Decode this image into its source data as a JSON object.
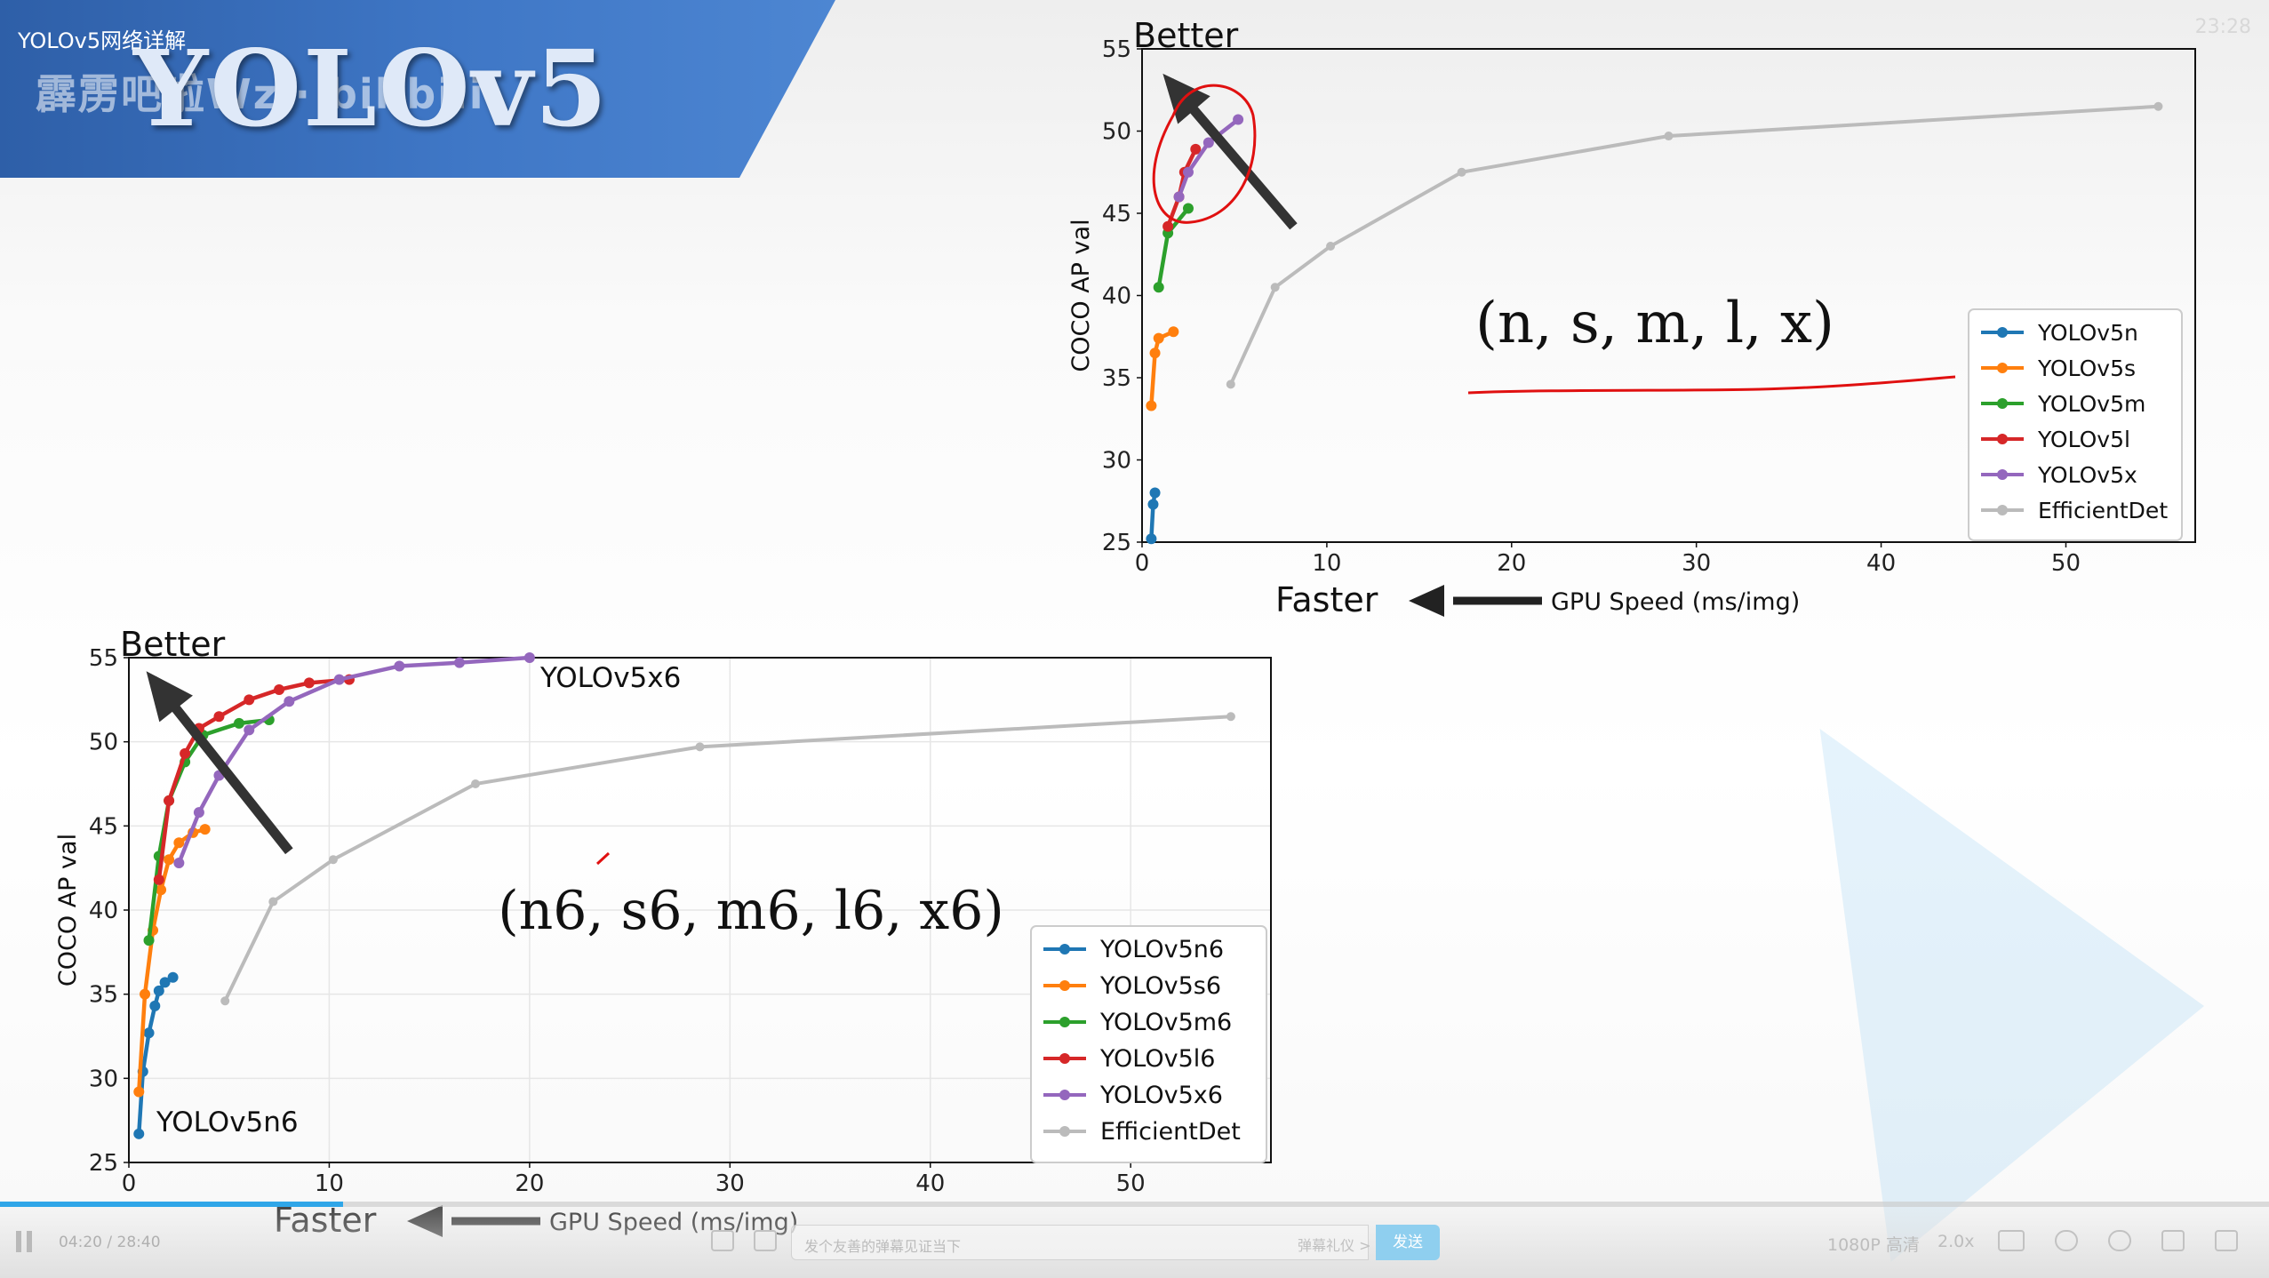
{
  "header": {
    "video_title": "YOLOv5网络详解",
    "watermark": "霹雳吧啦Wz · bilibili",
    "slide_title": "YOLOv5",
    "corner_timer": "23:28"
  },
  "annotations": {
    "top_chart_label": "(n, s, m, l, x)",
    "bottom_chart_label": "(n6, s6, m6, l6, x6)",
    "inline_label_n6": "YOLOv5n6",
    "inline_label_x6": "YOLOv5x6"
  },
  "colors": {
    "yolov5n": "#1f77b4",
    "yolov5s": "#ff7f0e",
    "yolov5m": "#2ca02c",
    "yolov5l": "#d62728",
    "yolov5x": "#9467bd",
    "efficientdet": "#bbbbbb",
    "banner": "#3f77c6",
    "progress": "#2fa6e8",
    "send_button": "#8fcfef",
    "pen_red": "#e01010"
  },
  "chart_data": [
    {
      "type": "line",
      "title": "",
      "xlabel": "GPU Speed (ms/img)",
      "ylabel": "COCO AP val",
      "x_hint": "Faster",
      "y_hint": "Better",
      "xlim": [
        0,
        57
      ],
      "ylim": [
        25,
        55
      ],
      "xticks": [
        0,
        10,
        20,
        30,
        40,
        50
      ],
      "yticks": [
        25,
        30,
        35,
        40,
        45,
        50,
        55
      ],
      "grid": false,
      "legend": "right",
      "series": [
        {
          "name": "YOLOv5n",
          "color_key": "yolov5n",
          "x": [
            0.5,
            0.6,
            0.7
          ],
          "y": [
            25.2,
            27.3,
            28.0
          ]
        },
        {
          "name": "YOLOv5s",
          "color_key": "yolov5s",
          "x": [
            0.5,
            0.7,
            0.9,
            1.7
          ],
          "y": [
            33.3,
            36.5,
            37.4,
            37.8
          ]
        },
        {
          "name": "YOLOv5m",
          "color_key": "yolov5m",
          "x": [
            0.9,
            1.4,
            2.5
          ],
          "y": [
            40.5,
            43.8,
            45.3
          ]
        },
        {
          "name": "YOLOv5l",
          "color_key": "yolov5l",
          "x": [
            1.4,
            2.0,
            2.3,
            2.9
          ],
          "y": [
            44.2,
            46.0,
            47.5,
            48.9
          ]
        },
        {
          "name": "YOLOv5x",
          "color_key": "yolov5x",
          "x": [
            2.0,
            2.5,
            3.6,
            5.2
          ],
          "y": [
            46.0,
            47.5,
            49.3,
            50.7
          ]
        },
        {
          "name": "EfficientDet",
          "color_key": "efficientdet",
          "x": [
            4.8,
            7.2,
            10.2,
            17.3,
            28.5,
            55.0
          ],
          "y": [
            34.6,
            40.5,
            43.0,
            47.5,
            49.7,
            51.5
          ]
        }
      ]
    },
    {
      "type": "line",
      "title": "",
      "xlabel": "GPU Speed (ms/img)",
      "ylabel": "COCO AP val",
      "x_hint": "Faster",
      "y_hint": "Better",
      "xlim": [
        0,
        57
      ],
      "ylim": [
        25,
        55
      ],
      "xticks": [
        0,
        10,
        20,
        30,
        40,
        50
      ],
      "yticks": [
        25,
        30,
        35,
        40,
        45,
        50,
        55
      ],
      "grid": true,
      "legend": "lower right",
      "series": [
        {
          "name": "YOLOv5n6",
          "color_key": "yolov5n",
          "x": [
            0.5,
            0.7,
            1.0,
            1.3,
            1.5,
            1.8,
            2.2
          ],
          "y": [
            26.7,
            30.4,
            32.7,
            34.3,
            35.2,
            35.7,
            36.0
          ]
        },
        {
          "name": "YOLOv5s6",
          "color_key": "yolov5s",
          "x": [
            0.5,
            0.8,
            1.2,
            1.6,
            2.0,
            2.5,
            3.2,
            3.8
          ],
          "y": [
            29.2,
            35.0,
            38.8,
            41.2,
            43.0,
            44.0,
            44.6,
            44.8
          ]
        },
        {
          "name": "YOLOv5m6",
          "color_key": "yolov5m",
          "x": [
            1.0,
            1.5,
            2.0,
            2.8,
            3.7,
            5.5,
            7.0
          ],
          "y": [
            38.2,
            43.2,
            46.5,
            48.8,
            50.4,
            51.1,
            51.3
          ]
        },
        {
          "name": "YOLOv5l6",
          "color_key": "yolov5l",
          "x": [
            1.5,
            2.0,
            2.8,
            3.5,
            4.5,
            6.0,
            7.5,
            9.0,
            11.0
          ],
          "y": [
            41.8,
            46.5,
            49.3,
            50.8,
            51.5,
            52.5,
            53.1,
            53.5,
            53.7
          ]
        },
        {
          "name": "YOLOv5x6",
          "color_key": "yolov5x",
          "x": [
            2.5,
            3.5,
            4.5,
            6.0,
            8.0,
            10.5,
            13.5,
            16.5,
            20.0
          ],
          "y": [
            42.8,
            45.8,
            48.0,
            50.7,
            52.4,
            53.7,
            54.5,
            54.7,
            55.0
          ]
        },
        {
          "name": "EfficientDet",
          "color_key": "efficientdet",
          "x": [
            4.8,
            7.2,
            10.2,
            17.3,
            28.5,
            55.0
          ],
          "y": [
            34.6,
            40.5,
            43.0,
            47.5,
            49.7,
            51.5
          ]
        }
      ]
    }
  ],
  "player": {
    "time_current": "04:20",
    "time_total": "28:40",
    "progress_fraction": 0.151,
    "danmaku_placeholder": "发个友善的弹幕见证当下",
    "danmaku_etiquette": "弹幕礼仪 >",
    "send_label": "发送",
    "quality": "1080P 高清",
    "speed": "2.0x"
  }
}
